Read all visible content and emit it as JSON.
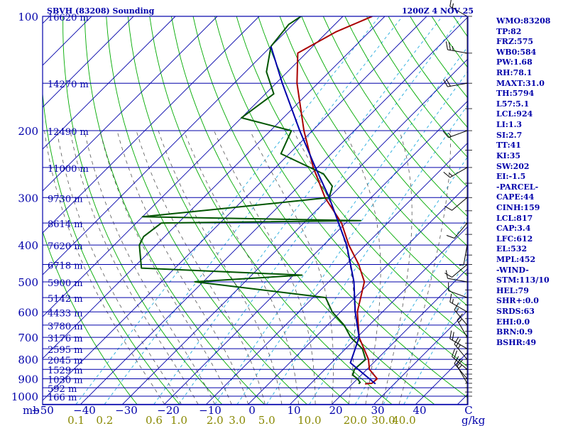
{
  "header": {
    "title": "SBVH (83208) Sounding",
    "datetime": "1200Z  4 NOV 25"
  },
  "indices": [
    "WMO:83208",
    "TP:82",
    "FRZ:575",
    "WB0:584",
    "PW:1.68",
    "RH:78.1",
    "MAXT:31.0",
    "TH:5794",
    "L57:5.1",
    "LCL:924",
    "LI:1.3",
    "SI:2.7",
    "TT:41",
    "KI:35",
    "SW:202",
    "EI:-1.5",
    "-PARCEL-",
    "CAPE:44",
    "CINH:159",
    "LCL:817",
    "CAP:3.4",
    "LFC:612",
    "EL:532",
    "MPL:452",
    "-WIND-",
    "STM:113/10",
    "HEL:79",
    "SHR+:0.0",
    "SRDS:63",
    "EHI:0.0",
    "BRN:0.9",
    "BSHR:49"
  ],
  "colors": {
    "frame": "#0000aa",
    "isobar": "#0000aa",
    "isotherm": "#0000aa",
    "dry_adiabat": "#00aa00",
    "moist_adiabat": "#555555",
    "mixing_ratio": "#22aadd",
    "temperature": "#aa0000",
    "dewpoint": "#005500",
    "parcel": "#0000aa",
    "wind_barbs": "#000000",
    "mixing_ratio_labels": "#888800",
    "labels": "#0000aa"
  },
  "chart_data": {
    "type": "line",
    "subtype": "skew-T log-p sounding",
    "pressure_axis": {
      "unit": "mb",
      "scale": "log",
      "range": [
        1000,
        100
      ],
      "ticks": [
        100,
        200,
        300,
        400,
        500,
        600,
        700,
        800,
        900,
        1000
      ],
      "label": "mb"
    },
    "temperature_axis": {
      "unit": "C",
      "range": [
        -50,
        50
      ],
      "ticks": [
        -50,
        -40,
        -30,
        -20,
        -10,
        0,
        10,
        20,
        30,
        40
      ],
      "label": "C"
    },
    "mixing_ratio_axis": {
      "unit": "g/kg",
      "ticks": [
        "0.1",
        "0.2",
        "0.6",
        "1.0",
        "2.0",
        "3.0",
        "5.0",
        "10.0",
        "20.0",
        "30.0",
        "40.0"
      ],
      "label": "g/kg"
    },
    "height_levels": [
      {
        "p": 100,
        "label": "16620 m"
      },
      {
        "p": 150,
        "label": "14270 m"
      },
      {
        "p": 200,
        "label": "12490 m"
      },
      {
        "p": 250,
        "label": "11000 m"
      },
      {
        "p": 300,
        "label": "9730 m"
      },
      {
        "p": 350,
        "label": "8614 m"
      },
      {
        "p": 400,
        "label": "7620 m"
      },
      {
        "p": 450,
        "label": "6718 m"
      },
      {
        "p": 500,
        "label": "5900 m"
      },
      {
        "p": 550,
        "label": "5142 m"
      },
      {
        "p": 600,
        "label": "4433 m"
      },
      {
        "p": 650,
        "label": "3780 m"
      },
      {
        "p": 700,
        "label": "3176 m"
      },
      {
        "p": 750,
        "label": "2595 m"
      },
      {
        "p": 800,
        "label": "2045 m"
      },
      {
        "p": 850,
        "label": "1529 m"
      },
      {
        "p": 900,
        "label": "1030 m"
      },
      {
        "p": 950,
        "label": "592 m"
      },
      {
        "p": 1000,
        "label": "166 m"
      }
    ],
    "series": [
      {
        "name": "Temperature",
        "points": [
          [
            928,
            23.0
          ],
          [
            925,
            24.5
          ],
          [
            900,
            24.7
          ],
          [
            850,
            20.6
          ],
          [
            800,
            18.0
          ],
          [
            700,
            10.5
          ],
          [
            600,
            4.0
          ],
          [
            500,
            -1.5
          ],
          [
            450,
            -7.0
          ],
          [
            400,
            -14.0
          ],
          [
            350,
            -21.0
          ],
          [
            300,
            -31.0
          ],
          [
            250,
            -41.0
          ],
          [
            200,
            -52.0
          ],
          [
            150,
            -65.0
          ],
          [
            125,
            -72.0
          ],
          [
            110,
            -68.0
          ],
          [
            100,
            -63.0
          ]
        ]
      },
      {
        "name": "Dewpoint",
        "points": [
          [
            928,
            21.5
          ],
          [
            920,
            21.5
          ],
          [
            900,
            20.0
          ],
          [
            880,
            18.0
          ],
          [
            850,
            17.0
          ],
          [
            800,
            17.3
          ],
          [
            750,
            14.0
          ],
          [
            700,
            8.5
          ],
          [
            650,
            4.0
          ],
          [
            600,
            -2.0
          ],
          [
            550,
            -7.0
          ],
          [
            500,
            -42.0
          ],
          [
            480,
            -18.0
          ],
          [
            460,
            -58.0
          ],
          [
            400,
            -64.0
          ],
          [
            380,
            -65.0
          ],
          [
            350,
            -64.0
          ],
          [
            345,
            -17.0
          ],
          [
            337,
            -70.0
          ],
          [
            320,
            -52.0
          ],
          [
            300,
            -30.0
          ],
          [
            280,
            -32.0
          ],
          [
            260,
            -37.0
          ],
          [
            230,
            -52.0
          ],
          [
            200,
            -55.0
          ],
          [
            185,
            -70.0
          ],
          [
            160,
            -68.0
          ],
          [
            140,
            -75.0
          ],
          [
            120,
            -80.0
          ],
          [
            105,
            -81.0
          ],
          [
            100,
            -80.0
          ]
        ]
      },
      {
        "name": "Parcel",
        "points": [
          [
            928,
            25.5
          ],
          [
            817,
            14.5
          ],
          [
            700,
            10.5
          ],
          [
            600,
            3.5
          ],
          [
            500,
            -4.0
          ],
          [
            400,
            -14.5
          ],
          [
            300,
            -30.0
          ],
          [
            250,
            -40.5
          ],
          [
            200,
            -53.0
          ],
          [
            150,
            -68.5
          ],
          [
            120,
            -80.0
          ]
        ]
      }
    ],
    "wind_profile": [
      {
        "p": 925,
        "dir": 330,
        "spd": 15
      },
      {
        "p": 900,
        "dir": 320,
        "spd": 20
      },
      {
        "p": 850,
        "dir": 310,
        "spd": 20
      },
      {
        "p": 800,
        "dir": 320,
        "spd": 25
      },
      {
        "p": 750,
        "dir": 300,
        "spd": 20
      },
      {
        "p": 700,
        "dir": 330,
        "spd": 15
      },
      {
        "p": 650,
        "dir": 320,
        "spd": 15
      },
      {
        "p": 600,
        "dir": 300,
        "spd": 15
      },
      {
        "p": 550,
        "dir": 290,
        "spd": 10
      },
      {
        "p": 500,
        "dir": 280,
        "spd": 10
      },
      {
        "p": 450,
        "dir": 230,
        "spd": 10
      },
      {
        "p": 400,
        "dir": 190,
        "spd": 5
      },
      {
        "p": 350,
        "dir": 220,
        "spd": 10
      },
      {
        "p": 300,
        "dir": 230,
        "spd": 10
      },
      {
        "p": 250,
        "dir": 240,
        "spd": 15
      },
      {
        "p": 200,
        "dir": 250,
        "spd": 15
      },
      {
        "p": 150,
        "dir": 260,
        "spd": 20
      },
      {
        "p": 125,
        "dir": 280,
        "spd": 25
      },
      {
        "p": 100,
        "dir": 300,
        "spd": 15
      }
    ]
  }
}
